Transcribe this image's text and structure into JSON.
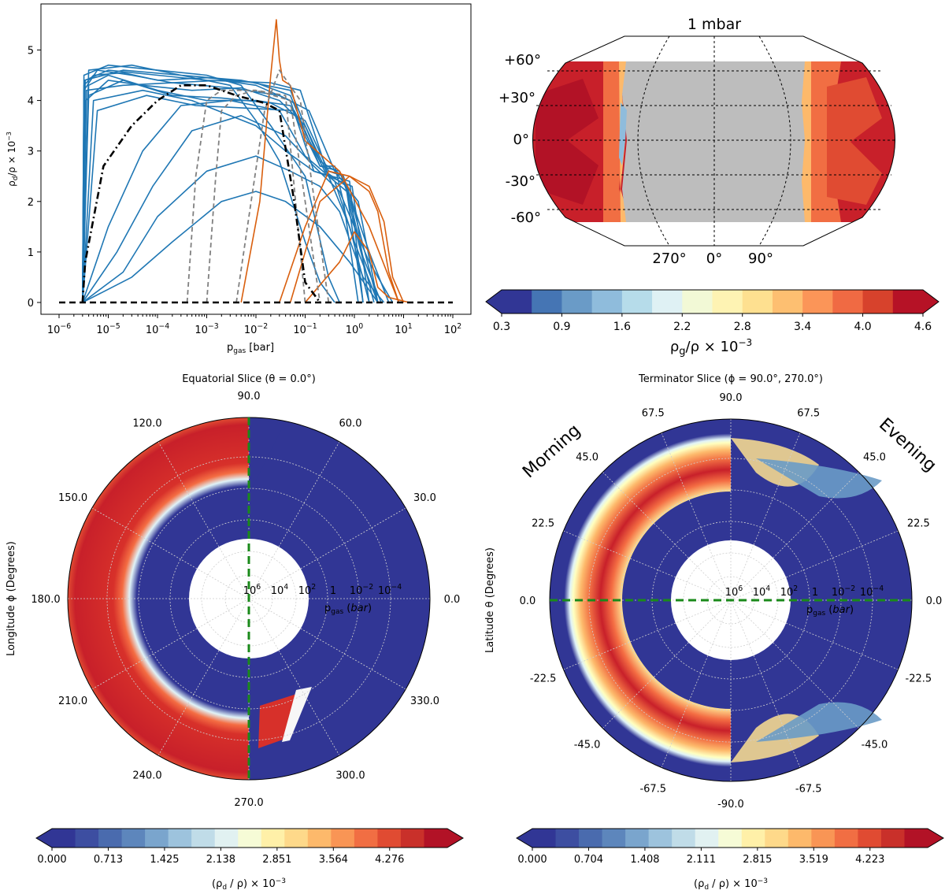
{
  "chart_data": [
    {
      "type": "line",
      "xlabel": "p_gas [bar]",
      "ylabel": "ρ_d/ρ × 10^-3",
      "x_scale": "log",
      "x_ticks": [
        "10^-6",
        "10^-5",
        "10^-4",
        "10^-3",
        "10^-2",
        "10^-1",
        "10^0",
        "10^1",
        "10^2"
      ],
      "xlim": [
        1e-06,
        100
      ],
      "y_ticks": [
        0,
        1,
        2,
        3,
        4,
        5
      ],
      "ylim": [
        0,
        5.6
      ],
      "colors": {
        "blue": "#1f77b4",
        "orange": "#d95f0e",
        "mean": "#000000",
        "gray": "#808080"
      },
      "series": [
        {
          "style": "blue",
          "x": [
            3e-06,
            3.2e-06,
            5e-06,
            2e-05,
            0.0001,
            0.001,
            0.01,
            0.05,
            0.2,
            0.4,
            0.6,
            1.2
          ],
          "y": [
            0,
            4.3,
            4.5,
            4.55,
            4.4,
            4.45,
            4.35,
            4.1,
            2.7,
            2.7,
            2.0,
            0
          ]
        },
        {
          "style": "blue",
          "x": [
            3e-06,
            3.2e-06,
            6e-06,
            3e-05,
            0.0002,
            0.002,
            0.01,
            0.05,
            0.15,
            0.3,
            0.7,
            1.5
          ],
          "y": [
            0,
            4.2,
            4.6,
            4.5,
            4.35,
            4.4,
            4.3,
            4.0,
            2.6,
            2.5,
            2.2,
            0
          ]
        },
        {
          "style": "blue",
          "x": [
            3e-06,
            3.5e-06,
            1e-05,
            5e-05,
            0.0005,
            0.005,
            0.03,
            0.1,
            0.3,
            0.8,
            2.0
          ],
          "y": [
            0,
            4.0,
            4.4,
            4.3,
            4.2,
            4.25,
            4.0,
            3.5,
            2.5,
            1.5,
            0
          ]
        },
        {
          "style": "blue",
          "x": [
            3e-06,
            4e-06,
            1e-05,
            0.0001,
            0.001,
            0.01,
            0.05,
            0.2,
            0.5,
            1.0,
            3.0
          ],
          "y": [
            0,
            4.3,
            4.5,
            4.2,
            4.0,
            4.0,
            3.9,
            2.7,
            2.6,
            1.8,
            0
          ]
        },
        {
          "style": "blue",
          "x": [
            3e-06,
            4e-06,
            2e-05,
            0.0002,
            0.002,
            0.02,
            0.1,
            0.3,
            0.6,
            2.0,
            5.0
          ],
          "y": [
            0,
            4.1,
            4.4,
            4.1,
            4.05,
            3.95,
            3.6,
            2.6,
            2.5,
            1.0,
            0
          ]
        },
        {
          "style": "blue",
          "x": [
            3e-06,
            1e-05,
            5e-05,
            0.0003,
            0.003,
            0.03,
            0.1,
            0.4,
            1.0,
            3.0
          ],
          "y": [
            0,
            1.5,
            3.0,
            3.9,
            4.0,
            3.8,
            2.9,
            2.4,
            1.2,
            0
          ]
        },
        {
          "style": "blue",
          "x": [
            3e-06,
            1.5e-05,
            8e-05,
            0.0005,
            0.005,
            0.04,
            0.15,
            0.5,
            2.0,
            6.0
          ],
          "y": [
            0,
            1.0,
            2.3,
            3.4,
            3.7,
            3.3,
            2.7,
            2.2,
            0.8,
            0
          ]
        },
        {
          "style": "blue",
          "x": [
            3e-06,
            2e-05,
            0.0001,
            0.001,
            0.01,
            0.05,
            0.2,
            0.5,
            1.5,
            4.0
          ],
          "y": [
            0,
            0.6,
            1.7,
            2.6,
            2.9,
            2.6,
            2.3,
            1.8,
            0.5,
            0
          ]
        },
        {
          "style": "blue",
          "x": [
            3e-06,
            3e-05,
            0.0002,
            0.002,
            0.01,
            0.04,
            0.2,
            0.8,
            3.0
          ],
          "y": [
            0,
            0.5,
            1.2,
            2.0,
            2.2,
            2.0,
            1.5,
            0.8,
            0
          ]
        },
        {
          "style": "blue",
          "x": [
            3e-06,
            3.2e-06,
            1e-05,
            0.0001,
            0.001,
            0.005,
            0.02,
            0.1,
            0.3,
            0.5
          ],
          "y": [
            0,
            4.5,
            4.7,
            4.6,
            4.5,
            4.3,
            3.5,
            2.5,
            0.5,
            0
          ]
        },
        {
          "style": "blue",
          "x": [
            3e-06,
            3.3e-06,
            2e-05,
            0.0003,
            0.003,
            0.01,
            0.03,
            0.1,
            0.2,
            0.4
          ],
          "y": [
            0,
            4.4,
            4.6,
            4.5,
            4.3,
            3.6,
            2.8,
            1.2,
            0.4,
            0
          ]
        },
        {
          "style": "blue",
          "x": [
            3e-06,
            5e-06,
            5e-05,
            0.0005,
            0.003,
            0.01,
            0.04,
            0.15,
            0.8,
            1.5
          ],
          "y": [
            0,
            4.0,
            4.2,
            4.0,
            3.7,
            3.5,
            3.0,
            2.6,
            2.4,
            0
          ]
        },
        {
          "style": "blue",
          "x": [
            3e-06,
            4e-06,
            3e-05,
            0.0003,
            0.005,
            0.05,
            0.2,
            0.6,
            1.0,
            2.5
          ],
          "y": [
            0,
            4.6,
            4.7,
            4.5,
            4.4,
            4.2,
            2.8,
            2.5,
            1.5,
            0
          ]
        },
        {
          "style": "blue",
          "x": [
            3e-06,
            6e-06,
            6e-05,
            0.0006,
            0.006,
            0.06,
            0.25,
            0.7,
            1.5,
            3.5
          ],
          "y": [
            0,
            3.8,
            4.1,
            3.9,
            3.85,
            3.8,
            2.6,
            2.3,
            0.9,
            0
          ]
        },
        {
          "style": "blue",
          "x": [
            3e-06,
            3.4e-06,
            1e-05,
            0.0001,
            0.001,
            0.02,
            0.08,
            0.3,
            0.9,
            2.0
          ],
          "y": [
            0,
            4.4,
            4.6,
            4.5,
            4.4,
            4.35,
            4.2,
            2.5,
            2.3,
            0
          ]
        },
        {
          "style": "blue",
          "x": [
            3e-06,
            3.6e-06,
            2e-05,
            0.0002,
            0.003,
            0.03,
            0.12,
            0.4,
            1.2,
            3.0
          ],
          "y": [
            0,
            4.2,
            4.3,
            4.35,
            4.25,
            4.1,
            3.8,
            2.6,
            2.0,
            0
          ]
        },
        {
          "style": "orange",
          "x": [
            0.005,
            0.012,
            0.02,
            0.026,
            0.03,
            0.035,
            0.05,
            0.1,
            0.5,
            2.0,
            8.0
          ],
          "y": [
            0,
            2.0,
            4.5,
            5.6,
            4.8,
            4.4,
            4.3,
            3.2,
            2.6,
            1.5,
            0
          ]
        },
        {
          "style": "orange",
          "x": [
            0.03,
            0.1,
            0.3,
            0.8,
            2.0,
            3.0,
            5.0,
            8.0
          ],
          "y": [
            0,
            1.5,
            2.6,
            2.5,
            2.2,
            1.8,
            0.6,
            0
          ]
        },
        {
          "style": "orange",
          "x": [
            0.05,
            0.2,
            0.8,
            2.0,
            4.0,
            6.0,
            10.0
          ],
          "y": [
            0,
            2.0,
            2.5,
            2.3,
            1.6,
            0.5,
            0
          ]
        },
        {
          "style": "orange",
          "x": [
            0.1,
            0.5,
            1.0,
            2.0,
            3.0,
            5.0,
            13.0
          ],
          "y": [
            0,
            0.8,
            1.4,
            1.0,
            0.3,
            0.1,
            0
          ]
        },
        {
          "style": "gray",
          "x": [
            0.0004,
            0.0006,
            0.001,
            0.002,
            0.01,
            0.04,
            0.1
          ],
          "y": [
            0,
            2.5,
            4.0,
            4.2,
            4.2,
            4.1,
            0
          ]
        },
        {
          "style": "gray",
          "x": [
            0.001,
            0.0015,
            0.002,
            0.004,
            0.01,
            0.05,
            0.2
          ],
          "y": [
            0,
            2.4,
            3.8,
            4.1,
            4.2,
            4.0,
            0
          ]
        },
        {
          "style": "gray",
          "x": [
            0.004,
            0.008,
            0.015,
            0.03,
            0.08,
            0.3
          ],
          "y": [
            0,
            2.0,
            3.8,
            4.6,
            4.0,
            0
          ]
        },
        {
          "style": "mean",
          "x": [
            3e-06,
            3.4e-06,
            8e-06,
            3e-05,
            0.0001,
            0.0003,
            0.001,
            0.004,
            0.015,
            0.03,
            0.06,
            0.1,
            0.2
          ],
          "y": [
            0,
            0.8,
            2.7,
            3.5,
            4.0,
            4.3,
            4.3,
            4.1,
            3.95,
            3.8,
            2.0,
            0.4,
            0
          ]
        },
        {
          "style": "zero",
          "x": [
            1e-06,
            100
          ],
          "y": [
            0,
            0
          ]
        }
      ]
    },
    {
      "type": "heatmap",
      "projection": "robinson",
      "title": "1 mbar",
      "lat_labels": [
        "+60°",
        "+30°",
        "0°",
        "-30°",
        "-60°"
      ],
      "lon_labels": [
        "270°",
        "0°",
        "90°"
      ],
      "colorbar": {
        "label": "ρ_g/ρ × 10^-3",
        "ticks": [
          "0.3",
          "0.9",
          "1.6",
          "2.2",
          "2.8",
          "3.4",
          "4.0",
          "4.6"
        ],
        "colors": [
          "#313695",
          "#4575b4",
          "#6a9bc7",
          "#8fbcdc",
          "#b6dcea",
          "#dff1f4",
          "#f2f9d6",
          "#fef3b3",
          "#fee090",
          "#fdbf71",
          "#fb9558",
          "#f06a43",
          "#d7422c",
          "#b61226"
        ]
      }
    },
    {
      "type": "heatmap",
      "projection": "polar",
      "title": "Equatorial Slice (θ = 0.0°)",
      "ylabel": "Longitude ϕ (Degrees)",
      "radial_axis_label": "p_gas (bar)",
      "angle_labels": [
        "90.0",
        "60.0",
        "30.0",
        "0.0",
        "330.0",
        "300.0",
        "270.0",
        "240.0",
        "210.0",
        "180.0",
        "150.0",
        "120.0"
      ],
      "radial_labels": [
        "10^6",
        "10^4",
        "10^2",
        "1",
        "10^-2",
        "10^-4"
      ],
      "colorbar": {
        "label": "(ρ_d / ρ) × 10^-3",
        "ticks": [
          "0.000",
          "0.713",
          "1.425",
          "2.138",
          "2.851",
          "3.564",
          "4.276"
        ],
        "colors": [
          "#313695",
          "#3d4ea1",
          "#4a6bae",
          "#5d86bc",
          "#7aa5cd",
          "#9dc3dd",
          "#c0dce8",
          "#e1f1f1",
          "#f6fbd6",
          "#fff0a8",
          "#fed98a",
          "#fdb96b",
          "#f99555",
          "#f16e43",
          "#e04b32",
          "#c9302a",
          "#b21226"
        ]
      }
    },
    {
      "type": "heatmap",
      "projection": "polar",
      "title": "Terminator Slice (ϕ = 90.0°, 270.0°)",
      "ylabel": "Latitude θ (Degrees)",
      "radial_axis_label": "p_gas (bar)",
      "side_labels": [
        "Morning",
        "Evening"
      ],
      "angle_labels": [
        "90.0",
        "67.5",
        "45.0",
        "22.5",
        "0.0",
        "-22.5",
        "-45.0",
        "-67.5",
        "-90.0",
        "-67.5",
        "-45.0",
        "-22.5",
        "0.0",
        "22.5",
        "45.0",
        "67.5"
      ],
      "radial_labels": [
        "10^6",
        "10^4",
        "10^2",
        "1",
        "10^-2",
        "10^-4"
      ],
      "colorbar": {
        "label": "(ρ_d / ρ) × 10^-3",
        "ticks": [
          "0.000",
          "0.704",
          "1.408",
          "2.111",
          "2.815",
          "3.519",
          "4.223"
        ],
        "colors": [
          "#313695",
          "#3d4ea1",
          "#4a6bae",
          "#5d86bc",
          "#7aa5cd",
          "#9dc3dd",
          "#c0dce8",
          "#e1f1f1",
          "#f6fbd6",
          "#fff0a8",
          "#fed98a",
          "#fdb96b",
          "#f99555",
          "#f16e43",
          "#e04b32",
          "#c9302a",
          "#b21226"
        ]
      }
    }
  ]
}
